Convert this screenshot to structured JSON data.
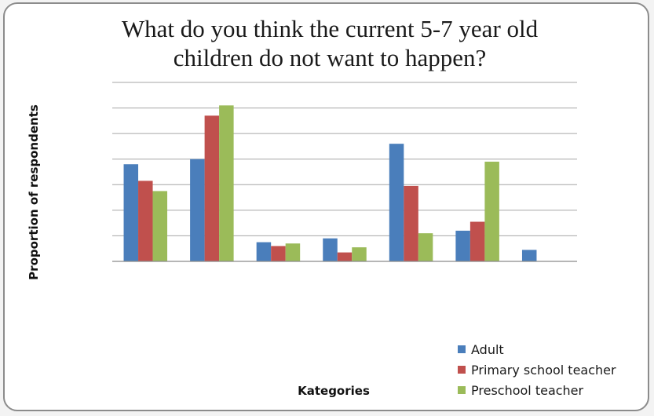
{
  "chart_data": {
    "type": "bar",
    "title_line1": "What do you think the current 5-7 year old",
    "title_line2": "children do not want to happen?",
    "xlabel": "Kategories",
    "ylabel": "Proportion of respondents",
    "categories": [
      "",
      "",
      "",
      "",
      "",
      "",
      ""
    ],
    "ylim": [
      0,
      7
    ],
    "grid": true,
    "legend_position": "bottom-right",
    "series": [
      {
        "name": "Adult",
        "color": "#4a7ebb",
        "values": [
          3.8,
          4.0,
          0.75,
          0.9,
          4.6,
          1.2,
          0.45
        ]
      },
      {
        "name": "Primary school teacher",
        "color": "#c0504d",
        "values": [
          3.15,
          5.7,
          0.6,
          0.35,
          2.95,
          1.55,
          0
        ]
      },
      {
        "name": "Preschool teacher",
        "color": "#9bbb59",
        "values": [
          2.75,
          6.1,
          0.7,
          0.55,
          1.1,
          3.9,
          0
        ]
      }
    ]
  }
}
